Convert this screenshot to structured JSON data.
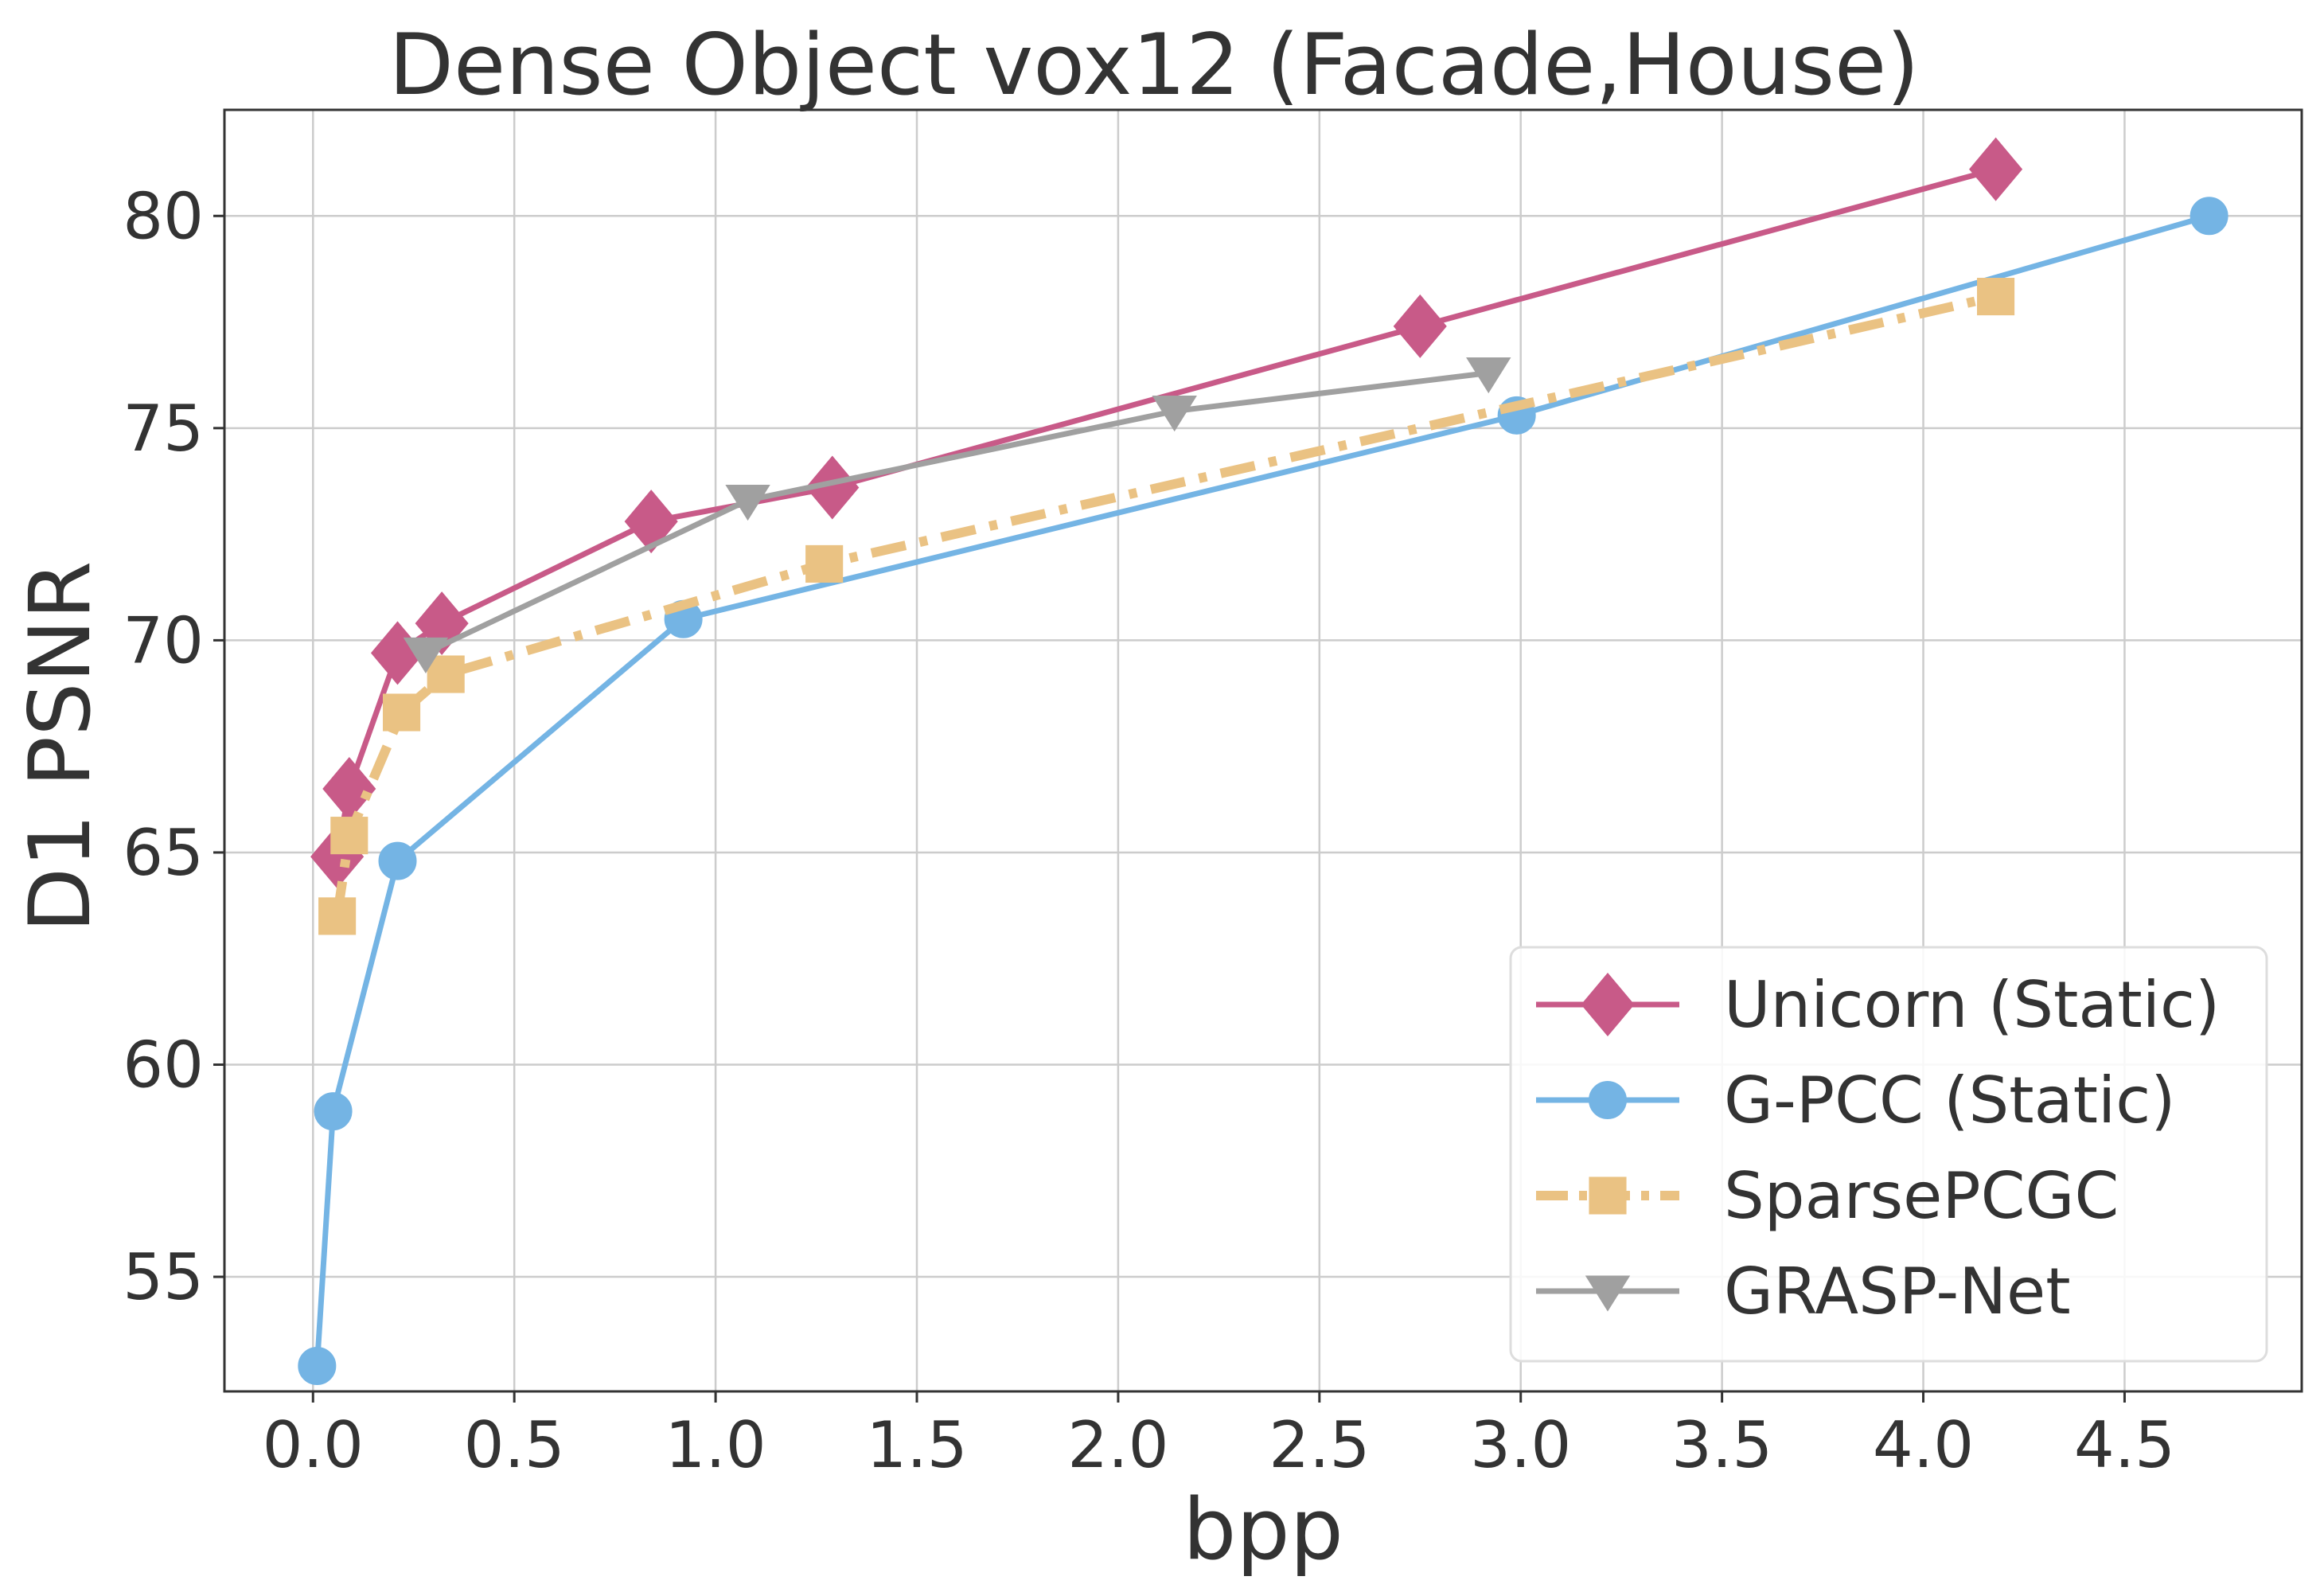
{
  "chart_data": {
    "type": "line",
    "title": "Dense Object vox12 (Facade,House)",
    "xlabel": "bpp",
    "ylabel": "D1 PSNR",
    "xlim": [
      -0.22,
      4.94
    ],
    "ylim": [
      52.3,
      82.5
    ],
    "xticks": [
      0.0,
      0.5,
      1.0,
      1.5,
      2.0,
      2.5,
      3.0,
      3.5,
      4.0,
      4.5
    ],
    "xtick_labels": [
      "0.0",
      "0.5",
      "1.0",
      "1.5",
      "2.0",
      "2.5",
      "3.0",
      "3.5",
      "4.0",
      "4.5"
    ],
    "yticks": [
      55,
      60,
      65,
      70,
      75,
      80
    ],
    "ytick_labels": [
      "55",
      "60",
      "65",
      "70",
      "75",
      "80"
    ],
    "grid": true,
    "legend_position": "lower-right",
    "series": [
      {
        "name": "Unicorn (Static)",
        "color": "#C85A88",
        "marker": "diamond",
        "line_style": "solid",
        "x": [
          0.06,
          0.09,
          0.21,
          0.32,
          0.84,
          1.29,
          2.75,
          4.18
        ],
        "y": [
          64.9,
          66.5,
          69.7,
          70.4,
          72.8,
          73.6,
          77.4,
          81.1
        ]
      },
      {
        "name": "G-PCC (Static)",
        "color": "#74B4E4",
        "marker": "circle",
        "line_style": "solid",
        "x": [
          0.01,
          0.05,
          0.21,
          0.92,
          2.99,
          4.71
        ],
        "y": [
          52.9,
          58.9,
          64.8,
          70.5,
          75.3,
          80.0
        ]
      },
      {
        "name": "SparsePCGC",
        "color": "#EAC283",
        "marker": "square",
        "line_style": "dashdot",
        "x": [
          0.06,
          0.09,
          0.22,
          0.33,
          1.27,
          4.18
        ],
        "y": [
          63.5,
          65.4,
          68.3,
          69.2,
          71.8,
          78.1
        ]
      },
      {
        "name": "GRASP-Net",
        "color": "#A0A0A0",
        "marker": "triangle-down",
        "line_style": "solid",
        "x": [
          0.28,
          1.08,
          2.14,
          2.92
        ],
        "y": [
          69.7,
          73.3,
          75.4,
          76.3
        ]
      }
    ]
  }
}
